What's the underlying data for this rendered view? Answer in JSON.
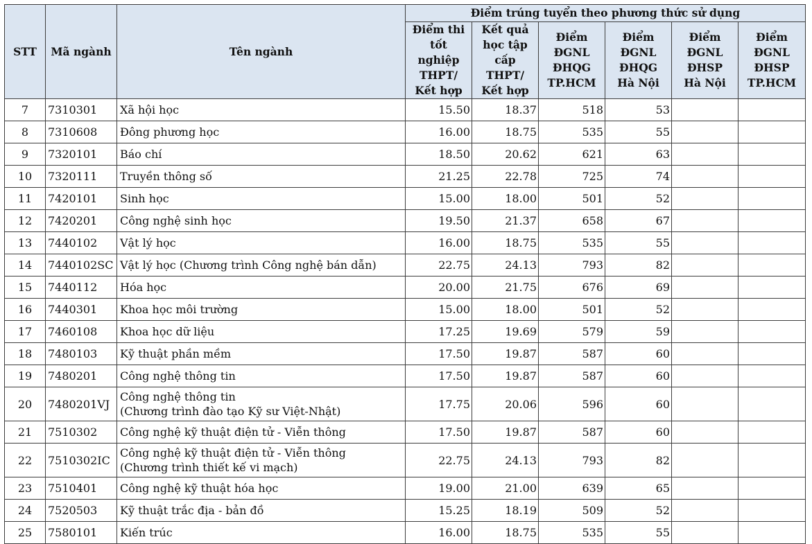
{
  "header": {
    "stt": "STT",
    "code": "Mã ngành",
    "name": "Tên ngành",
    "group": "Điểm trúng tuyển theo phương thức sử dụng",
    "methods": [
      [
        "Điểm thi",
        "tốt nghiệp",
        "THPT/",
        "Kết hợp"
      ],
      [
        "Kết quả",
        "học tập",
        "cấp THPT/",
        "Kết hợp"
      ],
      [
        "Điểm",
        "ĐGNL",
        "ĐHQG",
        "TP.HCM"
      ],
      [
        "Điểm",
        "ĐGNL",
        "ĐHQG",
        "Hà Nội"
      ],
      [
        "Điểm",
        "ĐGNL",
        "ĐHSP",
        "Hà Nội"
      ],
      [
        "Điểm",
        "ĐGNL",
        "ĐHSP",
        "TP.HCM"
      ]
    ]
  },
  "rows": [
    {
      "stt": "7",
      "code": "7310301",
      "name": [
        "Xã hội học"
      ],
      "v1": "15.50",
      "v2": "18.37",
      "v3": "518",
      "v4": "53",
      "v5": "",
      "v6": ""
    },
    {
      "stt": "8",
      "code": "7310608",
      "name": [
        "Đông phương học"
      ],
      "v1": "16.00",
      "v2": "18.75",
      "v3": "535",
      "v4": "55",
      "v5": "",
      "v6": ""
    },
    {
      "stt": "9",
      "code": "7320101",
      "name": [
        "Báo chí"
      ],
      "v1": "18.50",
      "v2": "20.62",
      "v3": "621",
      "v4": "63",
      "v5": "",
      "v6": ""
    },
    {
      "stt": "10",
      "code": "7320111",
      "name": [
        "Truyền thông số"
      ],
      "v1": "21.25",
      "v2": "22.78",
      "v3": "725",
      "v4": "74",
      "v5": "",
      "v6": ""
    },
    {
      "stt": "11",
      "code": "7420101",
      "name": [
        "Sinh học"
      ],
      "v1": "15.00",
      "v2": "18.00",
      "v3": "501",
      "v4": "52",
      "v5": "",
      "v6": ""
    },
    {
      "stt": "12",
      "code": "7420201",
      "name": [
        "Công nghệ sinh học"
      ],
      "v1": "19.50",
      "v2": "21.37",
      "v3": "658",
      "v4": "67",
      "v5": "",
      "v6": ""
    },
    {
      "stt": "13",
      "code": "7440102",
      "name": [
        "Vật lý học"
      ],
      "v1": "16.00",
      "v2": "18.75",
      "v3": "535",
      "v4": "55",
      "v5": "",
      "v6": ""
    },
    {
      "stt": "14",
      "code": "7440102SC",
      "name": [
        "Vật lý học (Chương trình Công nghệ bán dẫn)"
      ],
      "v1": "22.75",
      "v2": "24.13",
      "v3": "793",
      "v4": "82",
      "v5": "",
      "v6": ""
    },
    {
      "stt": "15",
      "code": "7440112",
      "name": [
        "Hóa học"
      ],
      "v1": "20.00",
      "v2": "21.75",
      "v3": "676",
      "v4": "69",
      "v5": "",
      "v6": ""
    },
    {
      "stt": "16",
      "code": "7440301",
      "name": [
        "Khoa học môi trường"
      ],
      "v1": "15.00",
      "v2": "18.00",
      "v3": "501",
      "v4": "52",
      "v5": "",
      "v6": ""
    },
    {
      "stt": "17",
      "code": "7460108",
      "name": [
        "Khoa học dữ liệu"
      ],
      "v1": "17.25",
      "v2": "19.69",
      "v3": "579",
      "v4": "59",
      "v5": "",
      "v6": ""
    },
    {
      "stt": "18",
      "code": "7480103",
      "name": [
        "Kỹ thuật phần mềm"
      ],
      "v1": "17.50",
      "v2": "19.87",
      "v3": "587",
      "v4": "60",
      "v5": "",
      "v6": ""
    },
    {
      "stt": "19",
      "code": "7480201",
      "name": [
        "Công nghệ thông tin"
      ],
      "v1": "17.50",
      "v2": "19.87",
      "v3": "587",
      "v4": "60",
      "v5": "",
      "v6": ""
    },
    {
      "stt": "20",
      "code": "7480201VJ",
      "name": [
        "Công nghệ thông tin",
        "(Chương trình đào tạo Kỹ sư Việt-Nhật)"
      ],
      "v1": "17.75",
      "v2": "20.06",
      "v3": "596",
      "v4": "60",
      "v5": "",
      "v6": ""
    },
    {
      "stt": "21",
      "code": "7510302",
      "name": [
        "Công nghệ kỹ thuật điện tử - Viễn thông"
      ],
      "v1": "17.50",
      "v2": "19.87",
      "v3": "587",
      "v4": "60",
      "v5": "",
      "v6": ""
    },
    {
      "stt": "22",
      "code": "7510302IC",
      "name": [
        "Công nghệ kỹ thuật điện tử - Viễn thông",
        "(Chương trình thiết kế vi mạch)"
      ],
      "v1": "22.75",
      "v2": "24.13",
      "v3": "793",
      "v4": "82",
      "v5": "",
      "v6": ""
    },
    {
      "stt": "23",
      "code": "7510401",
      "name": [
        "Công nghệ kỹ thuật hóa học"
      ],
      "v1": "19.00",
      "v2": "21.00",
      "v3": "639",
      "v4": "65",
      "v5": "",
      "v6": ""
    },
    {
      "stt": "24",
      "code": "7520503",
      "name": [
        "Kỹ thuật trắc địa - bản đồ"
      ],
      "v1": "15.25",
      "v2": "18.19",
      "v3": "509",
      "v4": "52",
      "v5": "",
      "v6": ""
    },
    {
      "stt": "25",
      "code": "7580101",
      "name": [
        "Kiến trúc"
      ],
      "v1": "16.00",
      "v2": "18.75",
      "v3": "535",
      "v4": "55",
      "v5": "",
      "v6": ""
    }
  ]
}
